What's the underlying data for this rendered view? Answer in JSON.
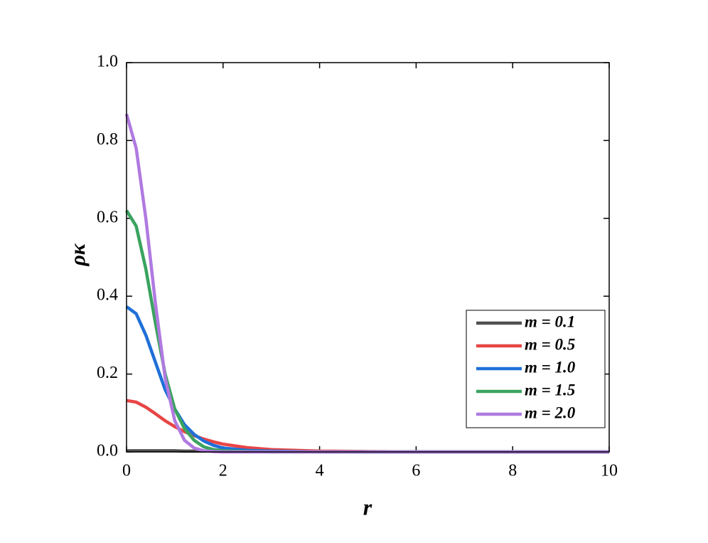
{
  "chart_data": {
    "type": "line",
    "x_label": "r",
    "y_label": "ρκ",
    "x": [
      0,
      0.2,
      0.4,
      0.6,
      0.8,
      1.0,
      1.2,
      1.4,
      1.6,
      1.8,
      2,
      2.5,
      3,
      4,
      5,
      6,
      7,
      8,
      9,
      10
    ],
    "series": [
      {
        "name": "m = 0.1",
        "color": "#505050",
        "values": [
          0.003,
          0.003,
          0.003,
          0.003,
          0.003,
          0.003,
          0.002,
          0.002,
          0.002,
          0.002,
          0.002,
          0.001,
          0.001,
          0.001,
          0,
          0,
          0,
          0,
          0,
          0
        ]
      },
      {
        "name": "m = 0.5",
        "color": "#e84545",
        "values": [
          0.132,
          0.128,
          0.115,
          0.098,
          0.08,
          0.065,
          0.052,
          0.042,
          0.033,
          0.026,
          0.02,
          0.011,
          0.006,
          0.002,
          0.001,
          0,
          0,
          0,
          0,
          0
        ]
      },
      {
        "name": "m = 1.0",
        "color": "#1f6fd8",
        "values": [
          0.373,
          0.355,
          0.3,
          0.23,
          0.16,
          0.11,
          0.07,
          0.045,
          0.028,
          0.017,
          0.01,
          0.004,
          0.002,
          0,
          0,
          0,
          0,
          0,
          0,
          0
        ]
      },
      {
        "name": "m = 1.5",
        "color": "#3aa35f",
        "values": [
          0.62,
          0.58,
          0.47,
          0.33,
          0.2,
          0.11,
          0.06,
          0.03,
          0.013,
          0.006,
          0.003,
          0.001,
          0,
          0,
          0,
          0,
          0,
          0,
          0,
          0
        ]
      },
      {
        "name": "m = 2.0",
        "color": "#b07ae0",
        "values": [
          0.868,
          0.78,
          0.6,
          0.38,
          0.19,
          0.08,
          0.03,
          0.01,
          0.003,
          0.001,
          0,
          0,
          0,
          0,
          0,
          0,
          0,
          0,
          0,
          0
        ]
      }
    ],
    "xlim": [
      0,
      10
    ],
    "xticks": [
      0,
      2,
      4,
      6,
      8,
      10
    ],
    "ylim": [
      0,
      1
    ],
    "yticks": [
      {
        "value": 0,
        "label": "0.0"
      },
      0.2,
      0.4,
      0.6,
      0.8,
      {
        "value": 1,
        "label": "1.0"
      }
    ],
    "legend": "lower right"
  }
}
